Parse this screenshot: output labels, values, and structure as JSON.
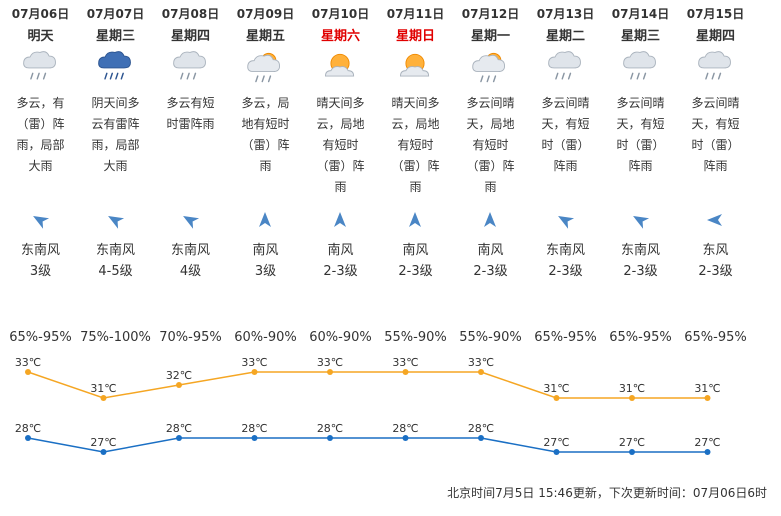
{
  "days": [
    {
      "date": "07月06日",
      "weekday": "明天",
      "weekend": false,
      "icon": "cloudy-rain-icon",
      "desc_lines": [
        "多云，有",
        "（雷）阵",
        "雨，局部",
        "大雨"
      ],
      "wind_icon": "wind-arrow-southeast-icon",
      "wind_dir": "东南风",
      "wind_level": "3级",
      "humidity": "65%-95%",
      "high": "33℃",
      "low": "28℃",
      "high_value": 33,
      "low_value": 28
    },
    {
      "date": "07月07日",
      "weekday": "星期三",
      "weekend": false,
      "icon": "thunderstorm-heavy-rain-icon",
      "desc_lines": [
        "阴天间多",
        "云有雷阵",
        "雨，局部",
        "大雨"
      ],
      "wind_icon": "wind-arrow-southeast-icon",
      "wind_dir": "东南风",
      "wind_level": "4-5级",
      "humidity": "75%-100%",
      "high": "31℃",
      "low": "27℃",
      "high_value": 31,
      "low_value": 27
    },
    {
      "date": "07月08日",
      "weekday": "星期四",
      "weekend": false,
      "icon": "cloudy-rain-icon",
      "desc_lines": [
        "多云有短",
        "时雷阵雨"
      ],
      "wind_icon": "wind-arrow-southeast-icon",
      "wind_dir": "东南风",
      "wind_level": "4级",
      "humidity": "70%-95%",
      "high": "32℃",
      "low": "28℃",
      "high_value": 32,
      "low_value": 28
    },
    {
      "date": "07月09日",
      "weekday": "星期五",
      "weekend": false,
      "icon": "partly-cloudy-rain-icon",
      "desc_lines": [
        "多云，局",
        "地有短时",
        "（雷）阵",
        "雨"
      ],
      "wind_icon": "wind-arrow-south-icon",
      "wind_dir": "南风",
      "wind_level": "3级",
      "humidity": "60%-90%",
      "high": "33℃",
      "low": "28℃",
      "high_value": 33,
      "low_value": 28
    },
    {
      "date": "07月10日",
      "weekday": "星期六",
      "weekend": true,
      "icon": "sunny-cloudy-icon",
      "desc_lines": [
        "晴天间多",
        "云，局地",
        "有短时",
        "（雷）阵",
        "雨"
      ],
      "wind_icon": "wind-arrow-south-icon",
      "wind_dir": "南风",
      "wind_level": "2-3级",
      "humidity": "60%-90%",
      "high": "33℃",
      "low": "28℃",
      "high_value": 33,
      "low_value": 28
    },
    {
      "date": "07月11日",
      "weekday": "星期日",
      "weekend": true,
      "icon": "sunny-cloudy-icon",
      "desc_lines": [
        "晴天间多",
        "云，局地",
        "有短时",
        "（雷）阵",
        "雨"
      ],
      "wind_icon": "wind-arrow-south-icon",
      "wind_dir": "南风",
      "wind_level": "2-3级",
      "humidity": "55%-90%",
      "high": "33℃",
      "low": "28℃",
      "high_value": 33,
      "low_value": 28
    },
    {
      "date": "07月12日",
      "weekday": "星期一",
      "weekend": false,
      "icon": "partly-cloudy-rain-icon",
      "desc_lines": [
        "多云间晴",
        "天，局地",
        "有短时",
        "（雷）阵",
        "雨"
      ],
      "wind_icon": "wind-arrow-south-icon",
      "wind_dir": "南风",
      "wind_level": "2-3级",
      "humidity": "55%-90%",
      "high": "33℃",
      "low": "28℃",
      "high_value": 33,
      "low_value": 28
    },
    {
      "date": "07月13日",
      "weekday": "星期二",
      "weekend": false,
      "icon": "cloudy-rain-icon",
      "desc_lines": [
        "多云间晴",
        "天，有短",
        "时（雷）",
        "阵雨"
      ],
      "wind_icon": "wind-arrow-southeast-icon",
      "wind_dir": "东南风",
      "wind_level": "2-3级",
      "humidity": "65%-95%",
      "high": "31℃",
      "low": "27℃",
      "high_value": 31,
      "low_value": 27
    },
    {
      "date": "07月14日",
      "weekday": "星期三",
      "weekend": false,
      "icon": "cloudy-rain-icon",
      "desc_lines": [
        "多云间晴",
        "天，有短",
        "时（雷）",
        "阵雨"
      ],
      "wind_icon": "wind-arrow-southeast-icon",
      "wind_dir": "东南风",
      "wind_level": "2-3级",
      "humidity": "65%-95%",
      "high": "31℃",
      "low": "27℃",
      "high_value": 31,
      "low_value": 27
    },
    {
      "date": "07月15日",
      "weekday": "星期四",
      "weekend": false,
      "icon": "cloudy-rain-icon",
      "desc_lines": [
        "多云间晴",
        "天，有短",
        "时（雷）",
        "阵雨"
      ],
      "wind_icon": "wind-arrow-east-icon",
      "wind_dir": "东风",
      "wind_level": "2-3级",
      "humidity": "65%-95%",
      "high": "31℃",
      "low": "27℃",
      "high_value": 31,
      "low_value": 27
    }
  ],
  "colors": {
    "high_line": "#f5a623",
    "low_line": "#1a6fc4",
    "weekend": "#e00000",
    "text": "#333333"
  },
  "footer": {
    "update_text": "北京时间7月5日 15:46更新，下次更新时间：07月06日6时"
  }
}
